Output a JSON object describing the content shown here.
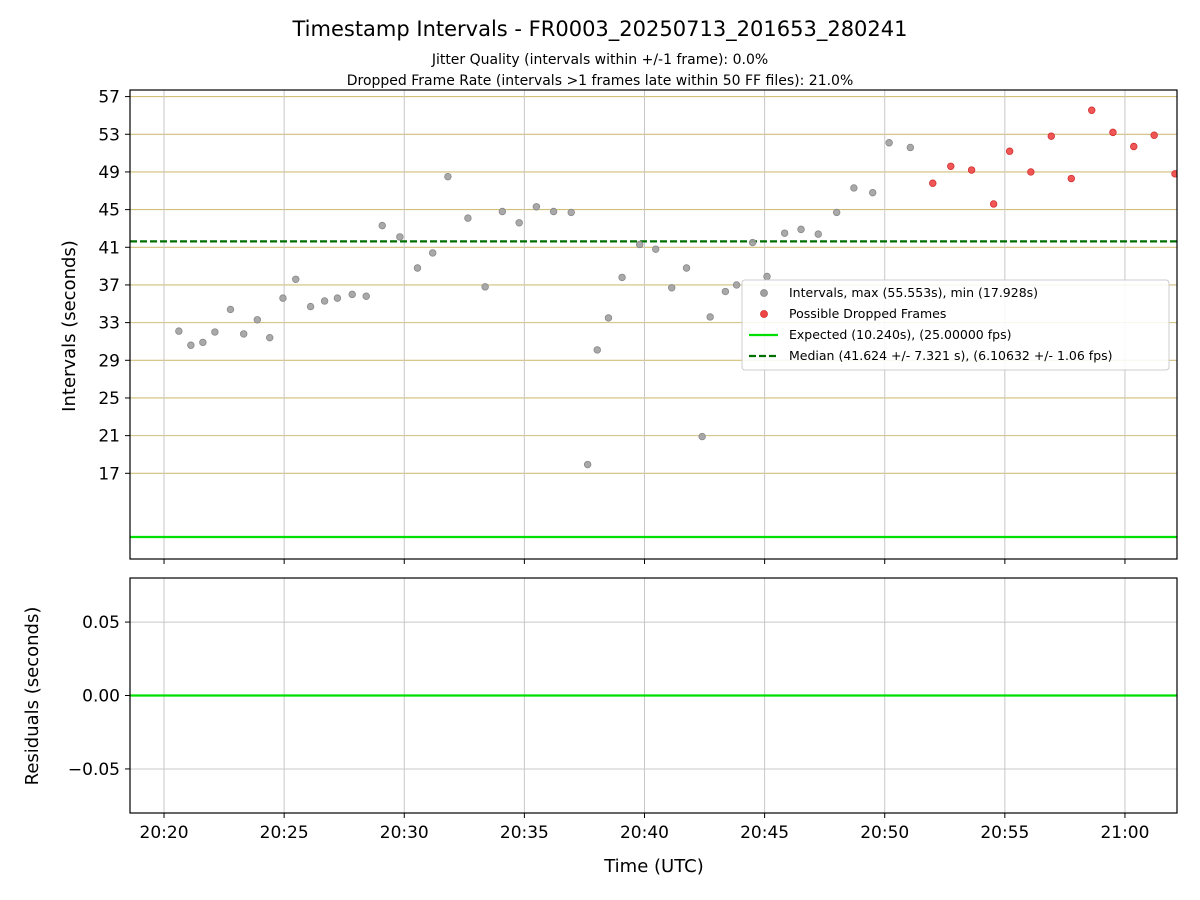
{
  "chart_data": [
    {
      "type": "scatter",
      "title": "Timestamp Intervals - FR0003_20250713_201653_280241",
      "subtitle_lines": [
        "Jitter Quality (intervals within +/-1 frame): 0.0%",
        "Dropped Frame Rate (intervals >1 frames late within 50 FF files): 21.0%"
      ],
      "ylabel": "Intervals (seconds)",
      "xlim": [
        "20:18:35",
        "21:02:10"
      ],
      "ylim": [
        7.9,
        57.7
      ],
      "yticks": [
        "17",
        "21",
        "25",
        "29",
        "33",
        "37",
        "41",
        "45",
        "49",
        "53",
        "57"
      ],
      "xticks": [
        "20:20",
        "20:25",
        "20:30",
        "20:35",
        "20:40",
        "20:45",
        "20:50",
        "20:55",
        "21:00"
      ],
      "grid": true,
      "legend_position": "center-right",
      "legend": [
        "Intervals, max (55.553s), min (17.928s)",
        "Possible Dropped Frames",
        "Expected (10.240s), (25.00000 fps)",
        "Median (41.624 +/- 7.321 s), (6.10632 +/- 1.06 fps)"
      ],
      "series": [
        {
          "name": "Intervals, max (55.553s), min (17.928s)",
          "color": "#a0a0a0",
          "x": [
            "20:20:37",
            "20:21:07",
            "20:21:37",
            "20:22:07",
            "20:22:46",
            "20:23:19",
            "20:23:53",
            "20:24:24",
            "20:24:57",
            "20:25:29",
            "20:26:06",
            "20:26:41",
            "20:27:13",
            "20:27:50",
            "20:28:25",
            "20:29:05",
            "20:29:49",
            "20:30:33",
            "20:31:11",
            "20:31:49",
            "20:32:39",
            "20:33:22",
            "20:34:05",
            "20:34:47",
            "20:35:30",
            "20:36:13",
            "20:36:57",
            "20:37:38",
            "20:38:02",
            "20:38:30",
            "20:39:04",
            "20:39:48",
            "20:40:28",
            "20:41:08",
            "20:41:45",
            "20:42:24",
            "20:42:44",
            "20:43:22",
            "20:43:50",
            "20:44:30",
            "20:45:06",
            "20:45:50",
            "20:46:31",
            "20:47:14",
            "20:48:00",
            "20:48:43",
            "20:49:30",
            "20:50:11",
            "20:51:04"
          ],
          "y": [
            32.1,
            30.6,
            30.9,
            32.0,
            34.4,
            31.8,
            33.3,
            31.4,
            35.6,
            37.6,
            34.7,
            35.3,
            35.6,
            36.0,
            35.8,
            43.3,
            42.1,
            38.8,
            40.4,
            48.5,
            44.1,
            36.8,
            44.8,
            43.6,
            45.3,
            44.8,
            44.7,
            17.93,
            30.1,
            33.5,
            37.8,
            41.3,
            40.8,
            36.7,
            38.8,
            20.9,
            33.6,
            36.3,
            37.0,
            41.5,
            37.9,
            42.5,
            42.9,
            42.4,
            44.7,
            47.3,
            46.8,
            52.1,
            51.6
          ]
        },
        {
          "name": "Possible Dropped Frames",
          "color": "#f04545",
          "x": [
            "20:52:00",
            "20:52:45",
            "20:53:37",
            "20:54:32",
            "20:55:12",
            "20:56:05",
            "20:56:56",
            "20:57:46",
            "20:58:37",
            "20:59:30",
            "21:00:22",
            "21:01:13",
            "21:02:05"
          ],
          "y": [
            47.8,
            49.6,
            49.2,
            45.6,
            51.2,
            49.0,
            52.8,
            48.3,
            55.55,
            53.2,
            51.7,
            52.9,
            48.8
          ]
        }
      ],
      "lines": [
        {
          "name": "Expected (10.240s), (25.00000 fps)",
          "y": 10.24,
          "color": "#00e000",
          "style": "solid"
        },
        {
          "name": "Median (41.624 +/- 7.321 s), (6.10632 +/- 1.06 fps)",
          "y": 41.624,
          "color": "#007000",
          "style": "dashed"
        }
      ]
    },
    {
      "type": "line",
      "ylabel": "Residuals (seconds)",
      "xlabel": "Time (UTC)",
      "xlim": [
        "20:18:35",
        "21:02:10"
      ],
      "ylim": [
        -0.08,
        0.08
      ],
      "yticks": [
        "0.05",
        "0.00",
        "−0.05"
      ],
      "xticks": [
        "20:20",
        "20:25",
        "20:30",
        "20:35",
        "20:40",
        "20:45",
        "20:50",
        "20:55",
        "21:00"
      ],
      "grid": true,
      "lines": [
        {
          "y": 0.0,
          "color": "#00e000",
          "style": "solid"
        }
      ]
    }
  ]
}
